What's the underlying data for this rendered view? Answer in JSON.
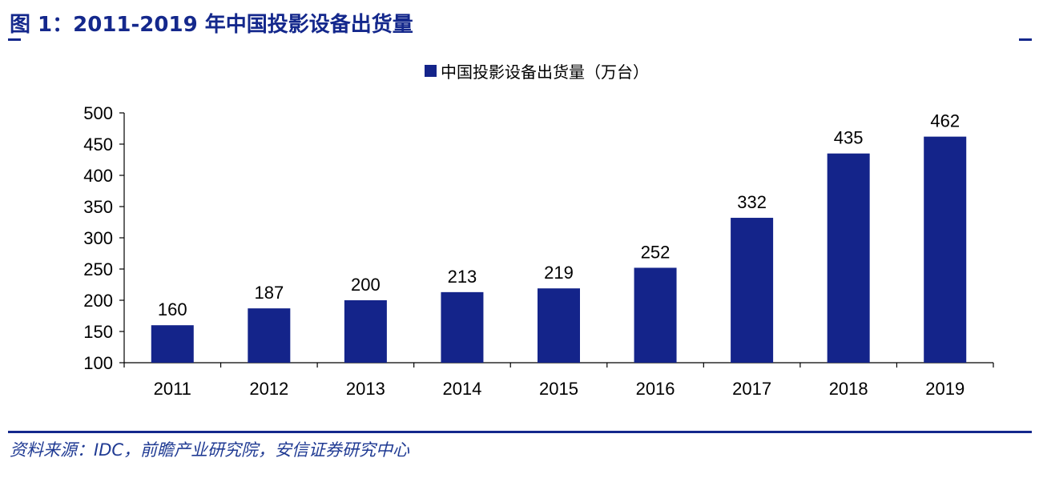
{
  "header": {
    "title": "图 1：2011-2019 年中国投影设备出货量"
  },
  "footer": {
    "source": "资料来源：IDC，前瞻产业研究院，安信证券研究中心"
  },
  "colors": {
    "bar": "#14248a",
    "accent": "#14288c"
  },
  "chart_data": {
    "type": "bar",
    "categories": [
      "2011",
      "2012",
      "2013",
      "2014",
      "2015",
      "2016",
      "2017",
      "2018",
      "2019"
    ],
    "series": [
      {
        "name": "中国投影设备出货量（万台）",
        "values": [
          160,
          187,
          200,
          213,
          219,
          252,
          332,
          435,
          462
        ]
      }
    ],
    "ylim": [
      100,
      500
    ],
    "yticks": [
      100,
      150,
      200,
      250,
      300,
      350,
      400,
      450,
      500
    ],
    "legend_position": "top-center",
    "grid": false,
    "data_labels": true
  }
}
